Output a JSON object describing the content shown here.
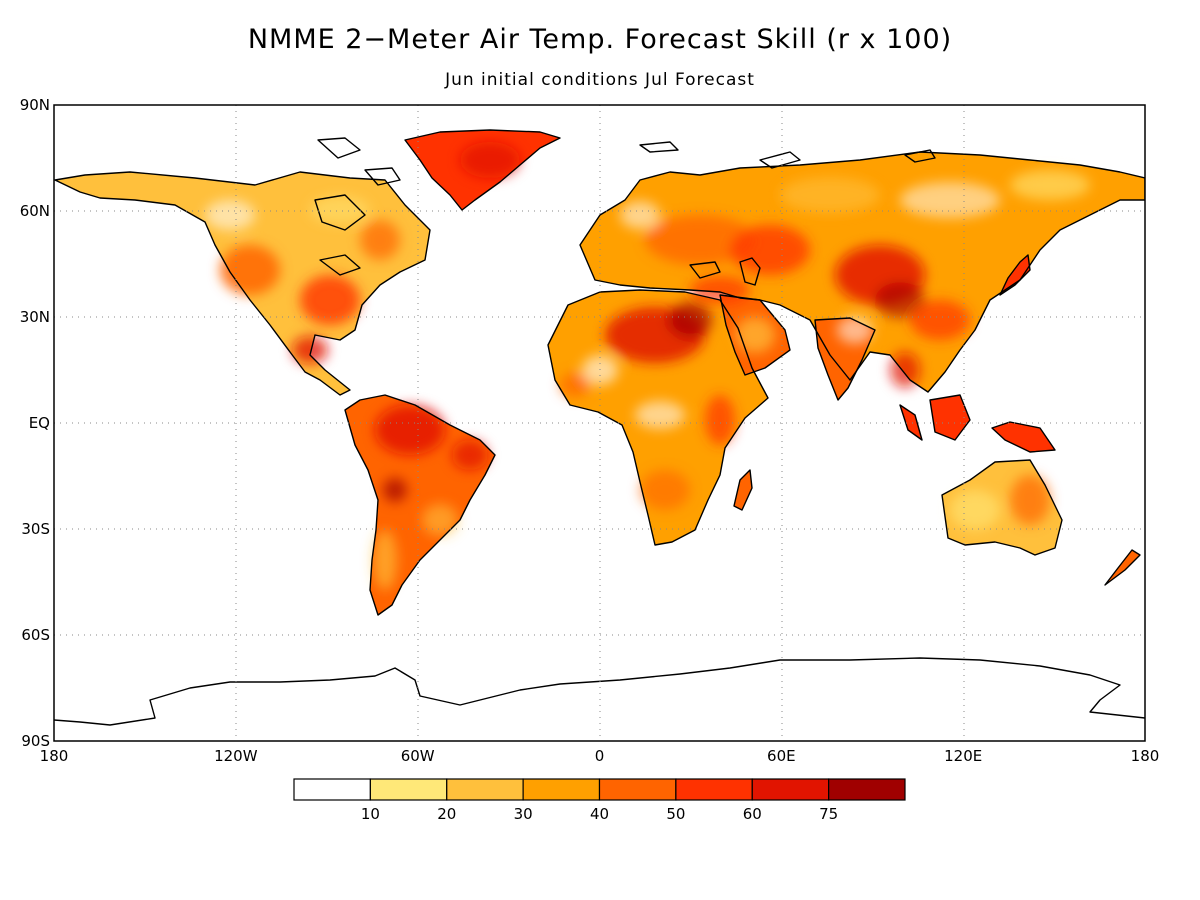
{
  "title": "NMME 2−Meter Air Temp. Forecast Skill (r x 100)",
  "subtitle": "Jun initial conditions   Jul Forecast",
  "axes": {
    "lat_labels": [
      {
        "lat": 90,
        "text": "90N"
      },
      {
        "lat": 60,
        "text": "60N"
      },
      {
        "lat": 30,
        "text": "30N"
      },
      {
        "lat": 0,
        "text": "EQ"
      },
      {
        "lat": -30,
        "text": "30S"
      },
      {
        "lat": -60,
        "text": "60S"
      },
      {
        "lat": -90,
        "text": "90S"
      }
    ],
    "lon_labels": [
      {
        "lon": -180,
        "text": "180"
      },
      {
        "lon": -120,
        "text": "120W"
      },
      {
        "lon": -60,
        "text": "60W"
      },
      {
        "lon": 0,
        "text": "0"
      },
      {
        "lon": 60,
        "text": "60E"
      },
      {
        "lon": 120,
        "text": "120E"
      },
      {
        "lon": 180,
        "text": "180"
      }
    ],
    "grid": "dotted"
  },
  "colorbar": {
    "colors": [
      "#ffffff",
      "#ffe878",
      "#ffc03c",
      "#ffa000",
      "#ff6400",
      "#ff3200",
      "#e11400",
      "#a00000"
    ],
    "labels": [
      "10",
      "20",
      "30",
      "40",
      "50",
      "60",
      "75"
    ]
  }
}
